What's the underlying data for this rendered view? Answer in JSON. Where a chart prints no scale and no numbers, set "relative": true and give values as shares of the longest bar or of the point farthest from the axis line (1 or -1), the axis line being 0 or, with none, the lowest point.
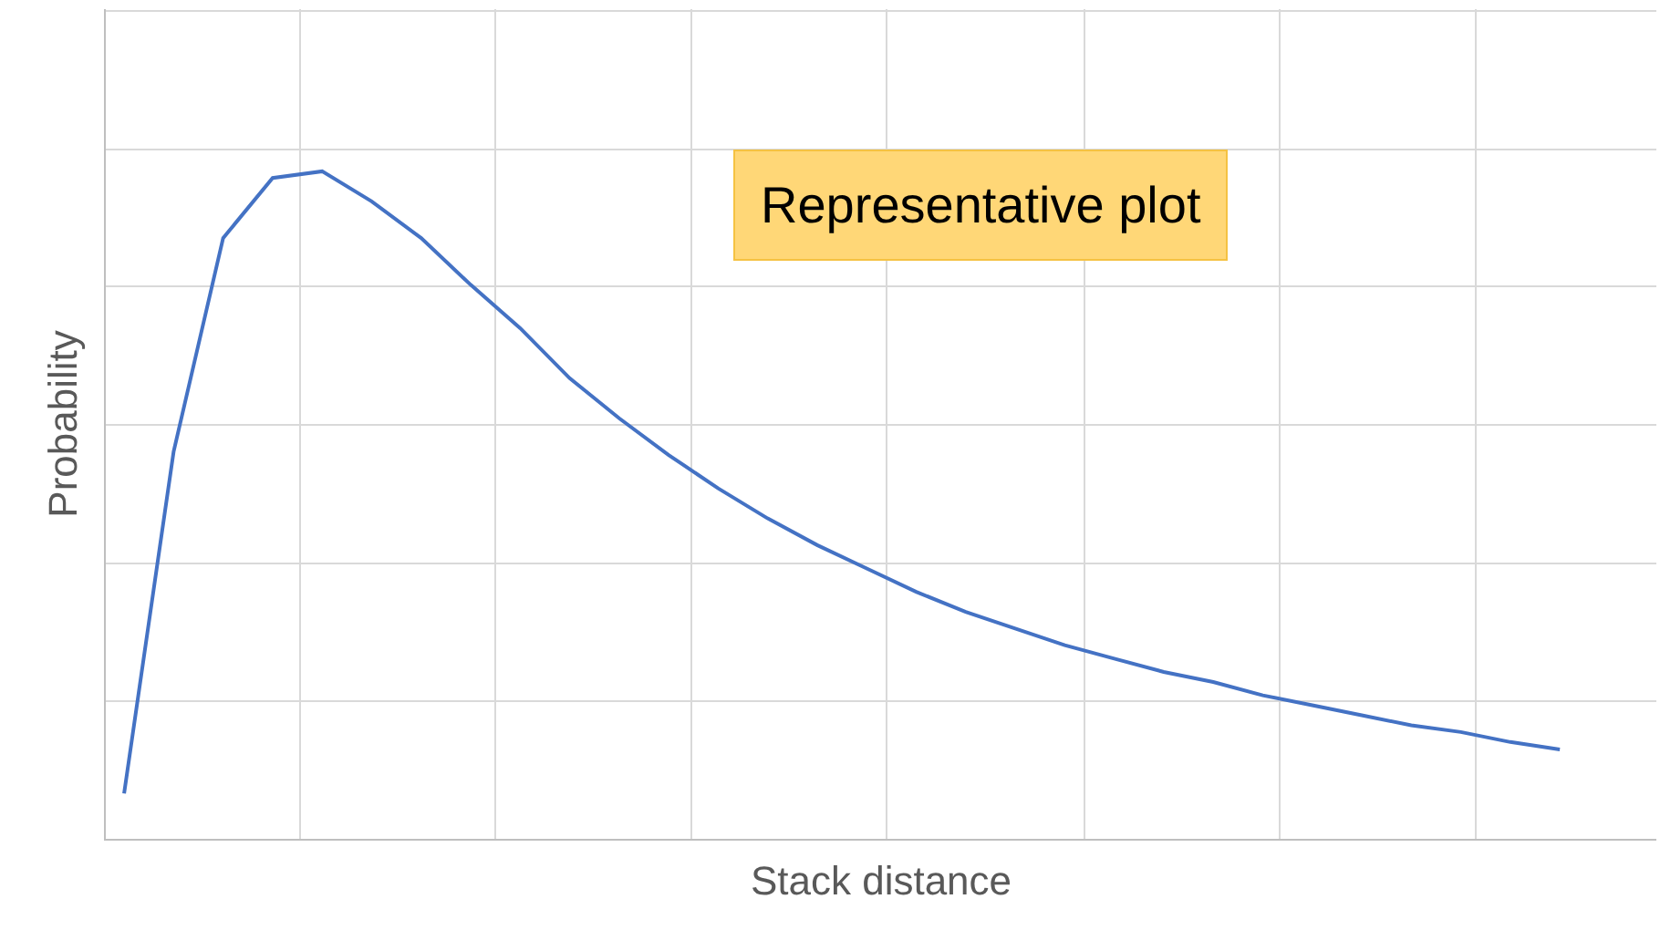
{
  "chart_data": {
    "type": "line",
    "relative": true,
    "xlabel": "Stack distance",
    "ylabel": "Probability",
    "grid": true,
    "marker": "none",
    "line_style": "solid",
    "annotations": [
      "Representative plot"
    ],
    "categories": [
      null,
      null,
      null,
      null,
      null,
      null,
      null,
      null,
      null,
      null,
      null,
      null,
      null,
      null,
      null,
      null,
      null,
      null,
      null,
      null,
      null,
      null,
      null,
      null,
      null,
      null,
      null,
      null,
      null,
      null
    ],
    "series": [
      {
        "color": "#4472c4",
        "values": [
          0.068,
          0.58,
          0.9,
          0.99,
          1,
          0.955,
          0.9,
          0.83,
          0.765,
          0.69,
          0.63,
          0.575,
          0.525,
          0.48,
          0.44,
          0.405,
          0.37,
          0.34,
          0.315,
          0.29,
          0.27,
          0.25,
          0.235,
          0.215,
          0.2,
          0.185,
          0.17,
          0.16,
          0.145,
          0.134
        ]
      }
    ]
  }
}
